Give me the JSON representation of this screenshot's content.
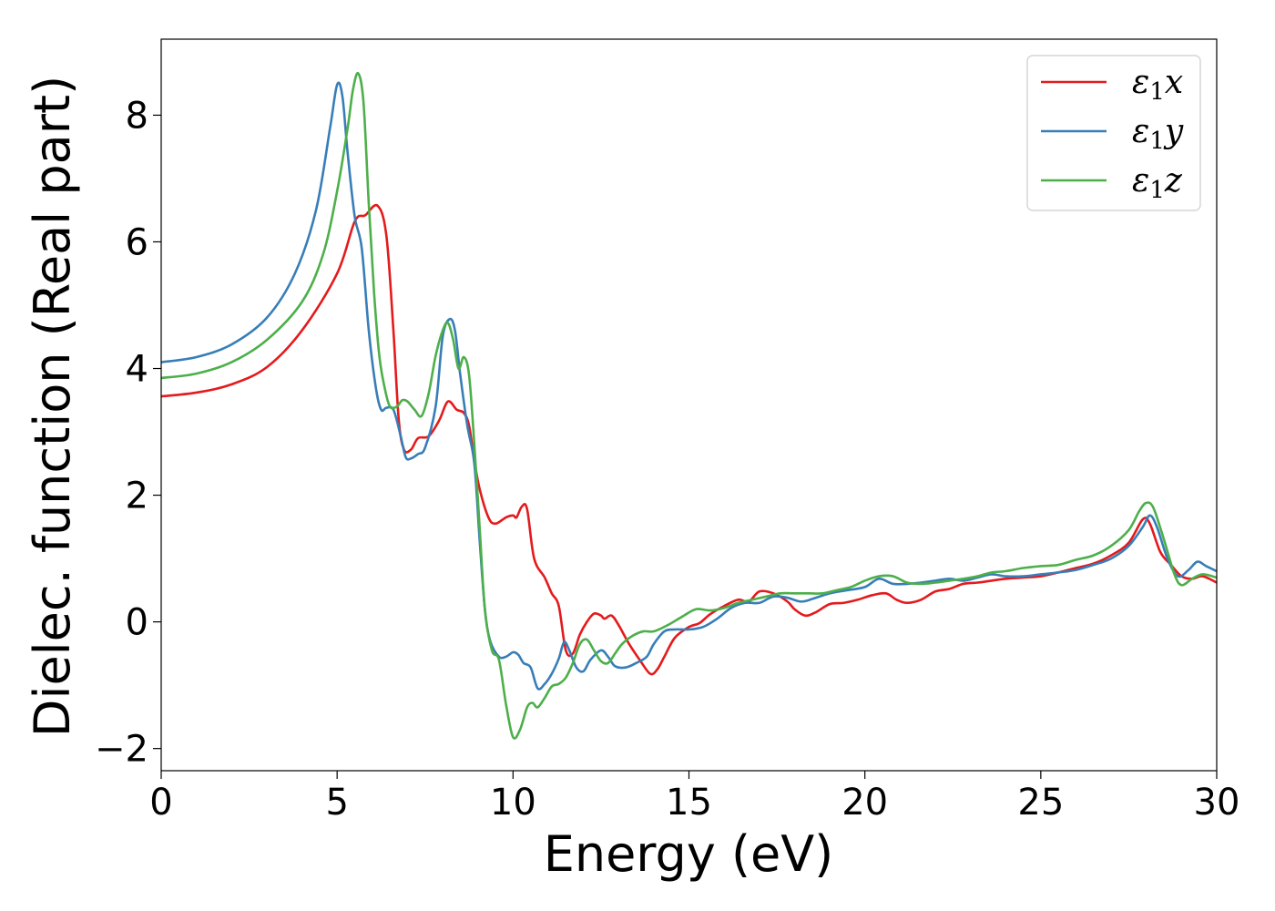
{
  "chart_data": {
    "type": "line",
    "xlabel": "Energy (eV)",
    "ylabel": "Dielec. function (Real part)",
    "xlim": [
      0,
      30
    ],
    "ylim": [
      -2.35,
      9.2
    ],
    "xticks": [
      0,
      5,
      10,
      15,
      20,
      25,
      30
    ],
    "xtick_labels": [
      "0",
      "5",
      "10",
      "15",
      "20",
      "25",
      "30"
    ],
    "yticks": [
      -2,
      0,
      2,
      4,
      6,
      8
    ],
    "ytick_labels": [
      "−2",
      "0",
      "2",
      "4",
      "6",
      "8"
    ],
    "grid": false,
    "legend_position": "top-right",
    "series": [
      {
        "name": "ε1x",
        "legend_base": "ε",
        "legend_sub": "1",
        "legend_var": "x",
        "color": "#e41a1c",
        "points": [
          [
            0,
            3.56
          ],
          [
            1,
            3.62
          ],
          [
            2,
            3.75
          ],
          [
            3,
            4.02
          ],
          [
            4,
            4.6
          ],
          [
            5,
            5.5
          ],
          [
            5.5,
            6.32
          ],
          [
            5.8,
            6.42
          ],
          [
            6.15,
            6.57
          ],
          [
            6.4,
            6.1
          ],
          [
            6.6,
            4.6
          ],
          [
            6.75,
            3.2
          ],
          [
            6.9,
            2.72
          ],
          [
            7.1,
            2.72
          ],
          [
            7.3,
            2.9
          ],
          [
            7.6,
            2.93
          ],
          [
            7.9,
            3.18
          ],
          [
            8.15,
            3.48
          ],
          [
            8.4,
            3.35
          ],
          [
            8.6,
            3.3
          ],
          [
            8.75,
            3.1
          ],
          [
            8.9,
            2.55
          ],
          [
            9.05,
            2.1
          ],
          [
            9.3,
            1.65
          ],
          [
            9.5,
            1.55
          ],
          [
            9.8,
            1.65
          ],
          [
            10.0,
            1.68
          ],
          [
            10.1,
            1.65
          ],
          [
            10.25,
            1.82
          ],
          [
            10.4,
            1.78
          ],
          [
            10.6,
            1.0
          ],
          [
            10.9,
            0.7
          ],
          [
            11.1,
            0.45
          ],
          [
            11.3,
            0.25
          ],
          [
            11.5,
            -0.45
          ],
          [
            11.7,
            -0.5
          ],
          [
            11.9,
            -0.2
          ],
          [
            12.1,
            0.0
          ],
          [
            12.3,
            0.13
          ],
          [
            12.5,
            0.1
          ],
          [
            12.6,
            0.05
          ],
          [
            12.8,
            0.1
          ],
          [
            13.0,
            -0.05
          ],
          [
            13.3,
            -0.35
          ],
          [
            13.6,
            -0.6
          ],
          [
            13.9,
            -0.82
          ],
          [
            14.1,
            -0.75
          ],
          [
            14.3,
            -0.55
          ],
          [
            14.6,
            -0.25
          ],
          [
            15.0,
            -0.08
          ],
          [
            15.3,
            -0.02
          ],
          [
            15.6,
            0.12
          ],
          [
            16.0,
            0.25
          ],
          [
            16.4,
            0.35
          ],
          [
            16.7,
            0.32
          ],
          [
            17.0,
            0.48
          ],
          [
            17.4,
            0.45
          ],
          [
            17.8,
            0.32
          ],
          [
            18.0,
            0.2
          ],
          [
            18.3,
            0.1
          ],
          [
            18.6,
            0.15
          ],
          [
            19.0,
            0.28
          ],
          [
            19.4,
            0.3
          ],
          [
            19.8,
            0.35
          ],
          [
            20.2,
            0.42
          ],
          [
            20.6,
            0.45
          ],
          [
            20.9,
            0.35
          ],
          [
            21.2,
            0.3
          ],
          [
            21.6,
            0.35
          ],
          [
            22.0,
            0.48
          ],
          [
            22.4,
            0.52
          ],
          [
            22.8,
            0.6
          ],
          [
            23.2,
            0.62
          ],
          [
            23.6,
            0.65
          ],
          [
            24.0,
            0.68
          ],
          [
            24.5,
            0.7
          ],
          [
            25.0,
            0.72
          ],
          [
            25.5,
            0.78
          ],
          [
            26.0,
            0.85
          ],
          [
            26.5,
            0.92
          ],
          [
            27.0,
            1.05
          ],
          [
            27.5,
            1.25
          ],
          [
            27.9,
            1.62
          ],
          [
            28.1,
            1.55
          ],
          [
            28.4,
            1.1
          ],
          [
            28.7,
            0.9
          ],
          [
            29.0,
            0.72
          ],
          [
            29.3,
            0.68
          ],
          [
            29.6,
            0.72
          ],
          [
            30,
            0.62
          ]
        ]
      },
      {
        "name": "ε1y",
        "legend_base": "ε",
        "legend_sub": "1",
        "legend_var": "y",
        "color": "#377eb8",
        "points": [
          [
            0,
            4.1
          ],
          [
            1,
            4.18
          ],
          [
            2,
            4.38
          ],
          [
            3,
            4.8
          ],
          [
            3.8,
            5.5
          ],
          [
            4.4,
            6.5
          ],
          [
            4.8,
            7.8
          ],
          [
            5.0,
            8.48
          ],
          [
            5.15,
            8.3
          ],
          [
            5.3,
            7.4
          ],
          [
            5.5,
            6.4
          ],
          [
            5.7,
            5.9
          ],
          [
            5.9,
            4.6
          ],
          [
            6.1,
            3.7
          ],
          [
            6.25,
            3.35
          ],
          [
            6.4,
            3.38
          ],
          [
            6.6,
            3.35
          ],
          [
            6.8,
            2.95
          ],
          [
            6.95,
            2.6
          ],
          [
            7.1,
            2.58
          ],
          [
            7.3,
            2.65
          ],
          [
            7.5,
            2.75
          ],
          [
            7.8,
            3.4
          ],
          [
            8.0,
            4.5
          ],
          [
            8.2,
            4.78
          ],
          [
            8.35,
            4.6
          ],
          [
            8.5,
            3.9
          ],
          [
            8.7,
            3.1
          ],
          [
            8.9,
            2.5
          ],
          [
            9.05,
            1.3
          ],
          [
            9.2,
            0.2
          ],
          [
            9.35,
            -0.3
          ],
          [
            9.6,
            -0.55
          ],
          [
            9.8,
            -0.55
          ],
          [
            10.0,
            -0.48
          ],
          [
            10.15,
            -0.52
          ],
          [
            10.3,
            -0.65
          ],
          [
            10.5,
            -0.72
          ],
          [
            10.7,
            -1.05
          ],
          [
            10.9,
            -0.98
          ],
          [
            11.1,
            -0.82
          ],
          [
            11.3,
            -0.58
          ],
          [
            11.45,
            -0.32
          ],
          [
            11.6,
            -0.45
          ],
          [
            11.8,
            -0.72
          ],
          [
            12.0,
            -0.78
          ],
          [
            12.2,
            -0.6
          ],
          [
            12.5,
            -0.45
          ],
          [
            12.7,
            -0.55
          ],
          [
            12.9,
            -0.7
          ],
          [
            13.2,
            -0.72
          ],
          [
            13.5,
            -0.65
          ],
          [
            13.8,
            -0.55
          ],
          [
            14.0,
            -0.35
          ],
          [
            14.3,
            -0.15
          ],
          [
            14.6,
            -0.12
          ],
          [
            15.0,
            -0.12
          ],
          [
            15.4,
            -0.08
          ],
          [
            15.8,
            0.05
          ],
          [
            16.2,
            0.22
          ],
          [
            16.6,
            0.3
          ],
          [
            17.0,
            0.3
          ],
          [
            17.4,
            0.4
          ],
          [
            17.8,
            0.38
          ],
          [
            18.2,
            0.32
          ],
          [
            18.6,
            0.38
          ],
          [
            19.0,
            0.45
          ],
          [
            19.5,
            0.5
          ],
          [
            20.0,
            0.55
          ],
          [
            20.4,
            0.68
          ],
          [
            20.8,
            0.6
          ],
          [
            21.2,
            0.6
          ],
          [
            21.6,
            0.62
          ],
          [
            22.0,
            0.65
          ],
          [
            22.4,
            0.68
          ],
          [
            22.8,
            0.65
          ],
          [
            23.2,
            0.7
          ],
          [
            23.6,
            0.75
          ],
          [
            24.0,
            0.72
          ],
          [
            24.5,
            0.72
          ],
          [
            25.0,
            0.75
          ],
          [
            25.5,
            0.78
          ],
          [
            26.0,
            0.82
          ],
          [
            26.5,
            0.9
          ],
          [
            27.0,
            1.0
          ],
          [
            27.5,
            1.2
          ],
          [
            27.9,
            1.5
          ],
          [
            28.1,
            1.68
          ],
          [
            28.3,
            1.5
          ],
          [
            28.6,
            1.0
          ],
          [
            28.9,
            0.72
          ],
          [
            29.2,
            0.82
          ],
          [
            29.45,
            0.95
          ],
          [
            29.7,
            0.88
          ],
          [
            30,
            0.8
          ]
        ]
      },
      {
        "name": "ε1z",
        "legend_base": "ε",
        "legend_sub": "1",
        "legend_var": "z",
        "color": "#4daf4a",
        "points": [
          [
            0,
            3.85
          ],
          [
            1,
            3.92
          ],
          [
            2,
            4.1
          ],
          [
            3,
            4.45
          ],
          [
            4,
            5.05
          ],
          [
            4.6,
            5.8
          ],
          [
            5.0,
            6.8
          ],
          [
            5.3,
            7.8
          ],
          [
            5.45,
            8.4
          ],
          [
            5.6,
            8.66
          ],
          [
            5.75,
            8.2
          ],
          [
            5.9,
            6.6
          ],
          [
            6.05,
            5.2
          ],
          [
            6.2,
            4.2
          ],
          [
            6.35,
            3.7
          ],
          [
            6.5,
            3.4
          ],
          [
            6.7,
            3.4
          ],
          [
            6.85,
            3.5
          ],
          [
            7.0,
            3.48
          ],
          [
            7.2,
            3.35
          ],
          [
            7.4,
            3.25
          ],
          [
            7.6,
            3.6
          ],
          [
            7.8,
            4.2
          ],
          [
            8.0,
            4.6
          ],
          [
            8.15,
            4.72
          ],
          [
            8.3,
            4.45
          ],
          [
            8.45,
            4.0
          ],
          [
            8.6,
            4.18
          ],
          [
            8.75,
            3.9
          ],
          [
            8.9,
            2.8
          ],
          [
            9.05,
            1.5
          ],
          [
            9.2,
            0.2
          ],
          [
            9.4,
            -0.45
          ],
          [
            9.6,
            -0.6
          ],
          [
            9.8,
            -1.3
          ],
          [
            10.0,
            -1.82
          ],
          [
            10.2,
            -1.7
          ],
          [
            10.4,
            -1.35
          ],
          [
            10.55,
            -1.28
          ],
          [
            10.7,
            -1.35
          ],
          [
            10.9,
            -1.2
          ],
          [
            11.1,
            -1.02
          ],
          [
            11.3,
            -0.98
          ],
          [
            11.5,
            -0.88
          ],
          [
            11.7,
            -0.65
          ],
          [
            11.9,
            -0.35
          ],
          [
            12.1,
            -0.28
          ],
          [
            12.3,
            -0.45
          ],
          [
            12.5,
            -0.62
          ],
          [
            12.7,
            -0.65
          ],
          [
            12.9,
            -0.5
          ],
          [
            13.1,
            -0.35
          ],
          [
            13.4,
            -0.22
          ],
          [
            13.7,
            -0.15
          ],
          [
            14.0,
            -0.15
          ],
          [
            14.4,
            -0.05
          ],
          [
            14.8,
            0.08
          ],
          [
            15.2,
            0.2
          ],
          [
            15.6,
            0.18
          ],
          [
            16.0,
            0.22
          ],
          [
            16.4,
            0.3
          ],
          [
            16.8,
            0.35
          ],
          [
            17.2,
            0.4
          ],
          [
            17.6,
            0.45
          ],
          [
            18.0,
            0.45
          ],
          [
            18.4,
            0.45
          ],
          [
            18.8,
            0.45
          ],
          [
            19.2,
            0.5
          ],
          [
            19.6,
            0.55
          ],
          [
            20.0,
            0.65
          ],
          [
            20.4,
            0.72
          ],
          [
            20.8,
            0.72
          ],
          [
            21.2,
            0.62
          ],
          [
            21.6,
            0.6
          ],
          [
            22.0,
            0.62
          ],
          [
            22.4,
            0.65
          ],
          [
            22.8,
            0.68
          ],
          [
            23.2,
            0.72
          ],
          [
            23.6,
            0.78
          ],
          [
            24.0,
            0.8
          ],
          [
            24.5,
            0.85
          ],
          [
            25.0,
            0.88
          ],
          [
            25.5,
            0.9
          ],
          [
            26.0,
            0.98
          ],
          [
            26.5,
            1.05
          ],
          [
            27.0,
            1.2
          ],
          [
            27.5,
            1.45
          ],
          [
            27.8,
            1.75
          ],
          [
            28.0,
            1.88
          ],
          [
            28.2,
            1.8
          ],
          [
            28.5,
            1.3
          ],
          [
            28.8,
            0.75
          ],
          [
            29.0,
            0.58
          ],
          [
            29.3,
            0.68
          ],
          [
            29.6,
            0.75
          ],
          [
            30,
            0.7
          ]
        ]
      }
    ]
  }
}
